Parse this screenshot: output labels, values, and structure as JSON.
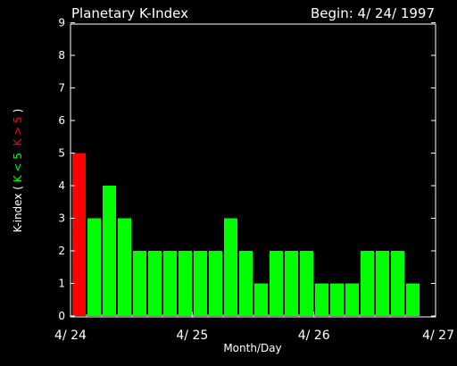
{
  "chart_data": {
    "type": "bar",
    "title": "Planetary K-Index",
    "subtitle": "Begin: 4/ 24/ 1997",
    "xlabel": "Month/Day",
    "ylabel": {
      "prefix": "K-index",
      "open_paren": "(",
      "low": "K < 5",
      "high": "K > 5",
      "close_paren": ")"
    },
    "ylim": [
      0,
      9
    ],
    "yticks": [
      "0",
      "1",
      "2",
      "3",
      "4",
      "5",
      "6",
      "7",
      "8",
      "9"
    ],
    "xlim": [
      0,
      24
    ],
    "xticks": [
      {
        "label": "4/ 24",
        "pos": 0
      },
      {
        "label": "4/ 25",
        "pos": 8
      },
      {
        "label": "4/ 26",
        "pos": 16
      },
      {
        "label": "4/ 27",
        "pos": 24
      }
    ],
    "bar_interval_hours": 3,
    "values": [
      5,
      3,
      4,
      3,
      2,
      2,
      2,
      2,
      2,
      2,
      3,
      2,
      1,
      2,
      2,
      2,
      1,
      1,
      1,
      2,
      2,
      2,
      1
    ],
    "threshold": 5,
    "colors": {
      "background": "#000000",
      "axes": "#ffffff",
      "low": "#00ff00",
      "high": "#ff0000"
    }
  }
}
